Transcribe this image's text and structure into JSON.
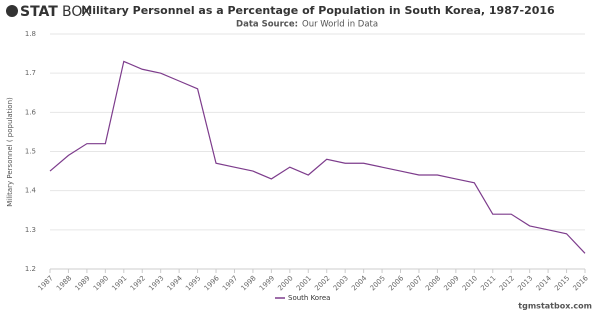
{
  "brand": {
    "bold": "STAT",
    "light": "BOX"
  },
  "footer": "tgmstatbox.com",
  "chart_data": {
    "type": "line",
    "title": "Military Personnel as a Percentage of Population in South Korea, 1987-2016",
    "subtitle_label": "Data Source:",
    "subtitle": "Our World in Data",
    "y_label": "Military Personnel ( population)",
    "x": [
      1987,
      1988,
      1989,
      1990,
      1991,
      1992,
      1993,
      1994,
      1995,
      1996,
      1997,
      1998,
      1999,
      2000,
      2001,
      2002,
      2003,
      2004,
      2005,
      2006,
      2007,
      2008,
      2009,
      2010,
      2011,
      2012,
      2013,
      2014,
      2015,
      2016
    ],
    "series": [
      {
        "name": "South Korea",
        "color": "#7d3c8c",
        "values": [
          1.45,
          1.49,
          1.52,
          1.52,
          1.73,
          1.71,
          1.7,
          1.68,
          1.66,
          1.47,
          1.46,
          1.45,
          1.43,
          1.46,
          1.44,
          1.48,
          1.47,
          1.47,
          1.46,
          1.45,
          1.44,
          1.44,
          1.43,
          1.42,
          1.34,
          1.34,
          1.31,
          1.3,
          1.29,
          1.24
        ]
      }
    ],
    "xlim": [
      1987,
      2016
    ],
    "xticks": [
      1987,
      1988,
      1989,
      1990,
      1991,
      1992,
      1993,
      1994,
      1995,
      1996,
      1997,
      1998,
      1999,
      2000,
      2001,
      2002,
      2003,
      2004,
      2005,
      2006,
      2007,
      2008,
      2009,
      2010,
      2011,
      2012,
      2013,
      2014,
      2015,
      2016
    ],
    "ylim": [
      1.2,
      1.8
    ],
    "yticks": [
      1.2,
      1.3,
      1.4,
      1.5,
      1.6,
      1.7,
      1.8
    ],
    "grid": true
  }
}
